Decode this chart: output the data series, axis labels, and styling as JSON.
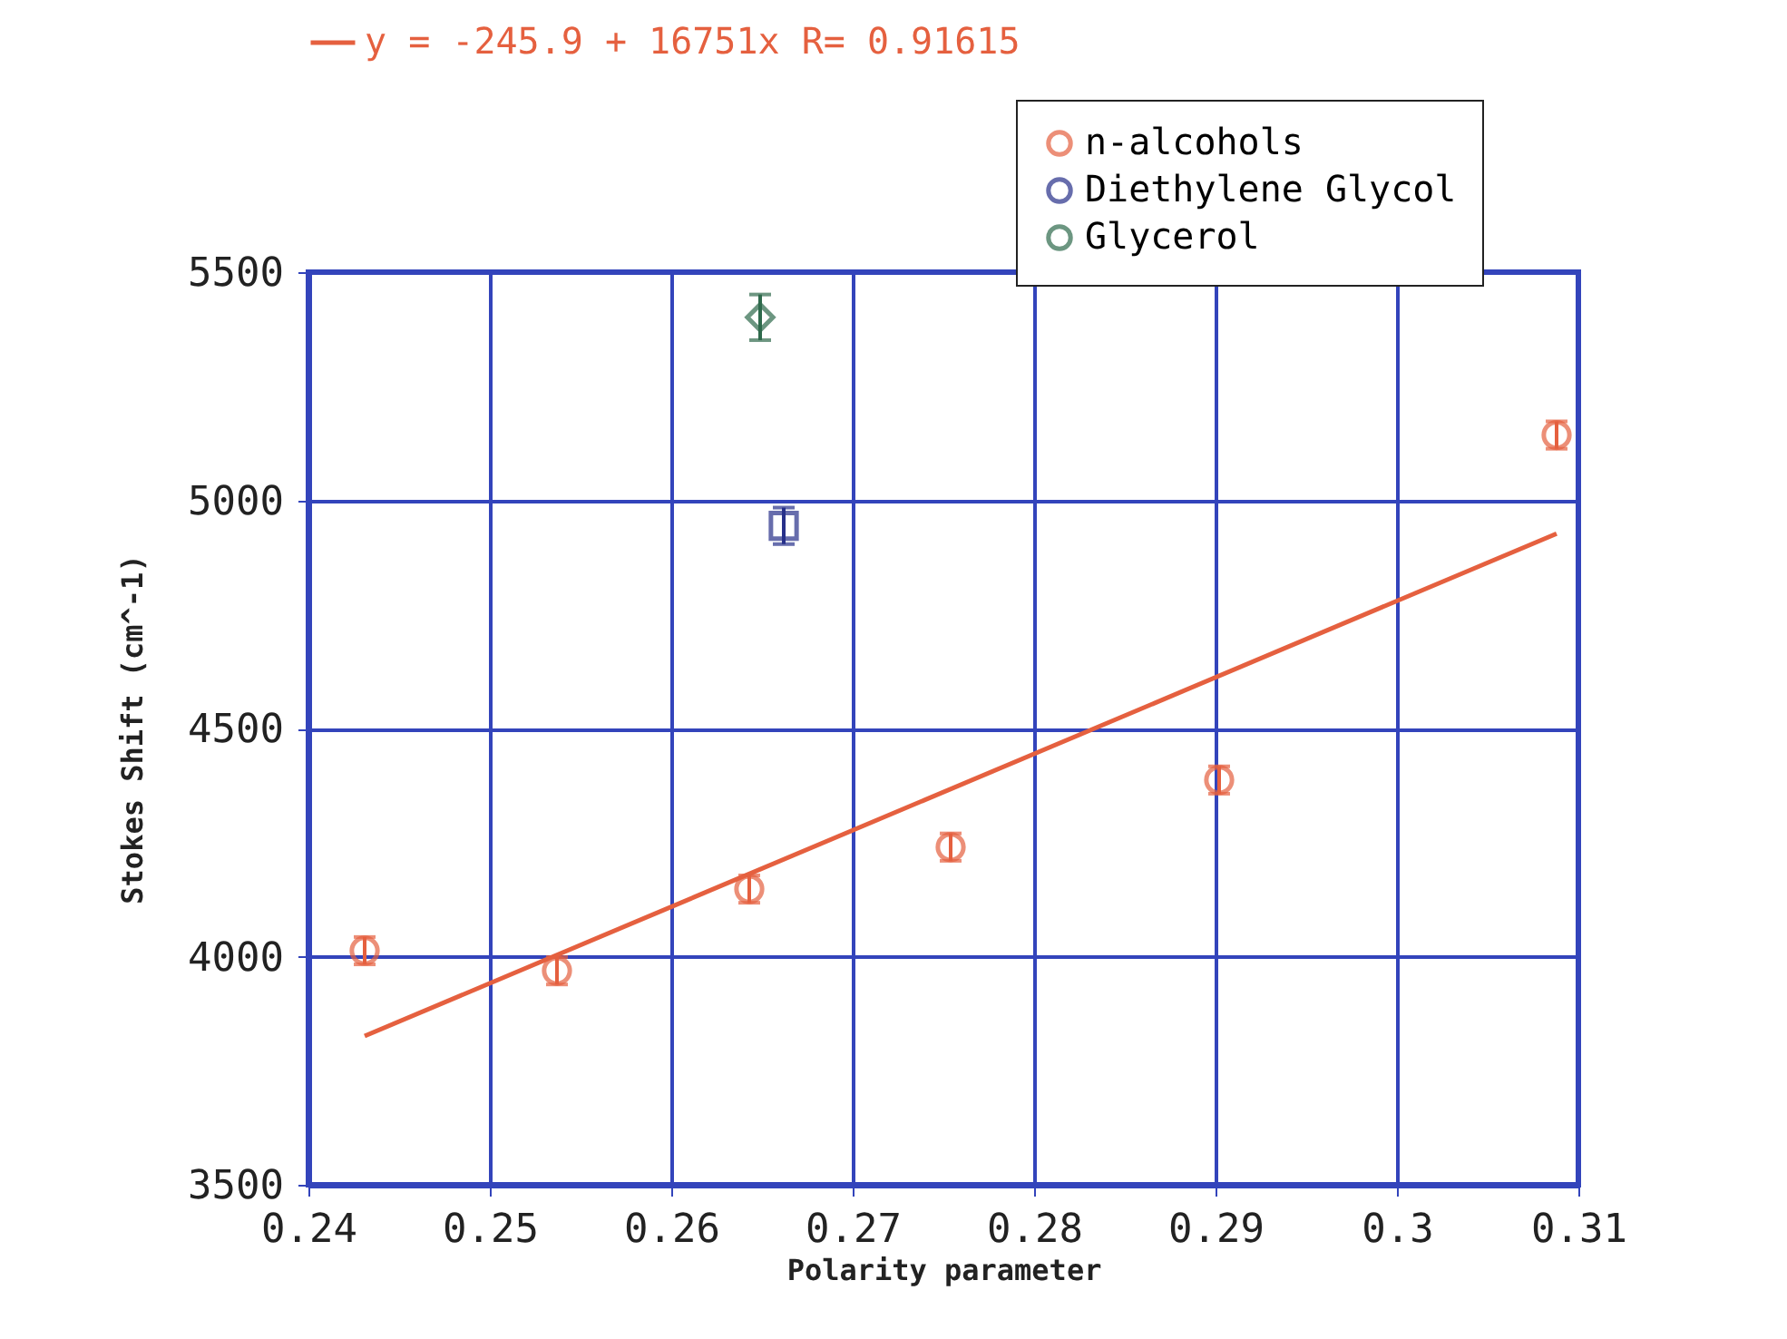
{
  "chart_data": {
    "type": "scatter",
    "xlabel": "Polarity parameter",
    "ylabel": "Stokes Shift (cm^-1)",
    "xlim": [
      0.24,
      0.31
    ],
    "xticks": [
      0.24,
      0.25,
      0.26,
      0.27,
      0.28,
      0.29,
      0.3,
      0.31
    ],
    "ylim": [
      3500,
      5500
    ],
    "yticks": [
      3500,
      4000,
      4500,
      5000,
      5500
    ],
    "grid": true,
    "legend": "top right",
    "series": [
      {
        "name": "n-alcohols",
        "marker": "circle",
        "color": "#e5603f",
        "x": [
          0.2431,
          0.2537,
          0.2643,
          0.2754,
          0.2902,
          0.3088
        ],
        "values": [
          4013,
          3969,
          4148,
          4240,
          4387,
          5143
        ],
        "errors": [
          30,
          30,
          30,
          30,
          30,
          30
        ]
      },
      {
        "name": "Diethylene Glycol",
        "marker": "square",
        "color": "#27308a",
        "x": [
          0.2662
        ],
        "values": [
          4944
        ],
        "errors": [
          40
        ]
      },
      {
        "name": "Glycerol",
        "marker": "diamond",
        "color": "#2f6a4c",
        "x": [
          0.2649
        ],
        "values": [
          5401
        ],
        "errors": [
          50
        ]
      },
      {
        "name": "y = -245.9 + 16751x R= 0.91615",
        "type": "line",
        "color": "#e5603f",
        "x": [
          0.2431,
          0.3088
        ],
        "values": [
          3826,
          4927
        ]
      }
    ]
  }
}
